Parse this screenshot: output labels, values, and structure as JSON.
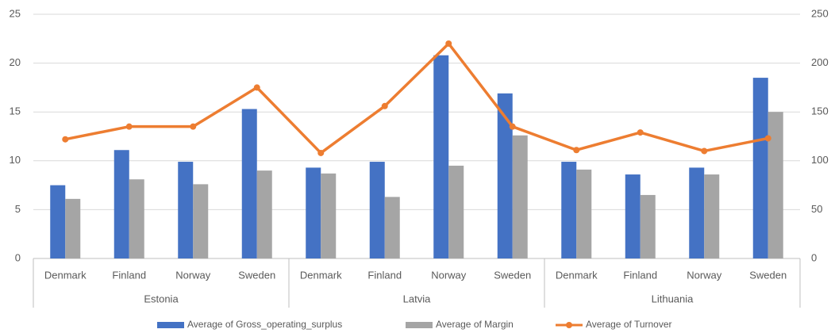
{
  "chart_data": {
    "type": "bar",
    "categories": [
      "Denmark",
      "Finland",
      "Norway",
      "Sweden",
      "Denmark",
      "Finland",
      "Norway",
      "Sweden",
      "Denmark",
      "Finland",
      "Norway",
      "Sweden"
    ],
    "groups": [
      "Estonia",
      "Latvia",
      "Lithuania"
    ],
    "series": [
      {
        "name": "Average of Gross_operating_surplus",
        "color": "#4472c4",
        "values": [
          7.5,
          11.1,
          9.9,
          15.3,
          9.3,
          9.9,
          20.8,
          16.9,
          9.9,
          8.6,
          9.3,
          18.5
        ]
      },
      {
        "name": "Average of Margin",
        "color": "#a5a5a5",
        "values": [
          6.1,
          8.1,
          7.6,
          9.0,
          8.7,
          6.3,
          9.5,
          12.6,
          9.1,
          6.5,
          8.6,
          15.0
        ]
      },
      {
        "name": "Average of Turnover",
        "color": "#ed7d31",
        "type": "line",
        "axis": "y2",
        "values": [
          122,
          135,
          135,
          175,
          108,
          156,
          220,
          135,
          111,
          129,
          110,
          123
        ]
      }
    ],
    "ylim": [
      0,
      25
    ],
    "yticks": [
      0,
      5,
      10,
      15,
      20,
      25
    ],
    "y2lim": [
      0,
      250
    ],
    "y2ticks": [
      0,
      50,
      100,
      150,
      200,
      250
    ],
    "grid": true,
    "legend": "bottom"
  }
}
